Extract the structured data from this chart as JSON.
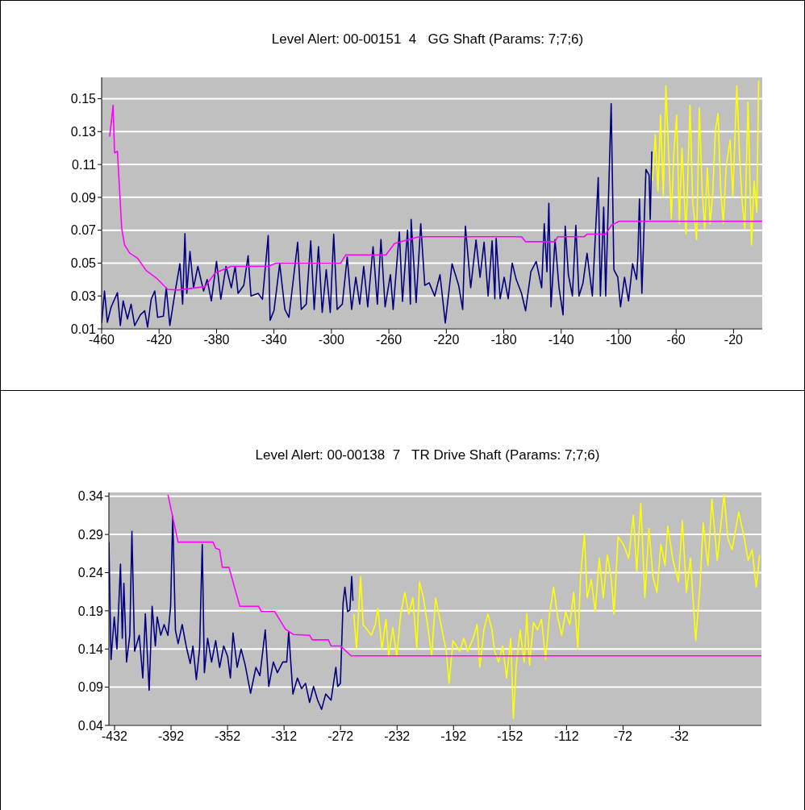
{
  "chart_data": [
    {
      "type": "line",
      "title": "Level Alert: 00-00151  4   GG Shaft (Params: 7;7;6)",
      "xlim": [
        -460,
        0
      ],
      "xticks": [
        -460,
        -420,
        -380,
        -340,
        -300,
        -260,
        -220,
        -180,
        -140,
        -100,
        -60,
        -20
      ],
      "ylim": [
        0.01,
        0.163
      ],
      "yticks": [
        0.01,
        0.03,
        0.05,
        0.07,
        0.09,
        0.11,
        0.13,
        0.15
      ],
      "grid": "y",
      "series": [
        {
          "color": "#000080",
          "x": [
            -460,
            -458,
            -456,
            -453.5,
            -449,
            -447,
            -445,
            -442,
            -439.5,
            -437,
            -433,
            -430,
            -428,
            -425.5,
            -423,
            -421,
            -417,
            -415,
            -412.5,
            -409,
            -405.5,
            -403.6,
            -402,
            -400.7,
            -398.5,
            -396,
            -393,
            -389,
            -386.5,
            -383.6,
            -380,
            -377,
            -373.4,
            -369.7,
            -367,
            -365,
            -361,
            -358,
            -356,
            -351,
            -348,
            -344,
            -342.7,
            -340,
            -336,
            -332.4,
            -329.6,
            -323.5,
            -321,
            -317.5,
            -314.4,
            -312,
            -309,
            -306.4,
            -303.6,
            -300.8,
            -298.4,
            -296,
            -292.4,
            -289,
            -285.9,
            -283,
            -280.3,
            -277.5,
            -274.7,
            -271,
            -268,
            -265.5,
            -262.6,
            -258.9,
            -257,
            -252.7,
            -250.5,
            -247,
            -245,
            -244.5,
            -241,
            -237.8,
            -235,
            -231.9,
            -228.1,
            -224.4,
            -220.7,
            -216,
            -211.4,
            -208.6,
            -206.7,
            -203,
            -199.3,
            -196.5,
            -193.7,
            -190.9,
            -188.1,
            -186.2,
            -185.3,
            -182.5,
            -179.7,
            -176.9,
            -174.1,
            -171.3,
            -167.6,
            -164.8,
            -161.1,
            -157.4,
            -153.6,
            -151.8,
            -149.9,
            -148.6,
            -147.1,
            -144.3,
            -141.5,
            -138.7,
            -137.2,
            -135,
            -132.2,
            -129.8,
            -127.6,
            -124.8,
            -122,
            -118.3,
            -114.2,
            -112.7,
            -110.4,
            -109,
            -105.2,
            -103.3,
            -100.6,
            -98.7,
            -95.9,
            -93.1,
            -90.3,
            -87.5,
            -86.6,
            -85.5,
            -83.8,
            -81,
            -78.8,
            -78,
            -76.9
          ],
          "values": [
            0.0136,
            0.033,
            0.014,
            0.023,
            0.032,
            0.012,
            0.027,
            0.016,
            0.025,
            0.012,
            0.0185,
            0.021,
            0.011,
            0.028,
            0.033,
            0.017,
            0.0177,
            0.035,
            0.012,
            0.0316,
            0.0496,
            0.025,
            0.068,
            0.0316,
            0.057,
            0.035,
            0.048,
            0.033,
            0.04,
            0.027,
            0.051,
            0.028,
            0.048,
            0.035,
            0.048,
            0.0316,
            0.0365,
            0.0545,
            0.03,
            0.0316,
            0.028,
            0.0668,
            0.0152,
            0.021,
            0.0496,
            0.0218,
            0.017,
            0.0627,
            0.0218,
            0.025,
            0.0635,
            0.0218,
            0.06,
            0.02,
            0.046,
            0.02,
            0.0676,
            0.0218,
            0.025,
            0.0537,
            0.0218,
            0.0414,
            0.025,
            0.048,
            0.0234,
            0.06,
            0.025,
            0.0643,
            0.0234,
            0.043,
            0.0218,
            0.069,
            0.0267,
            0.07,
            0.025,
            0.0766,
            0.026,
            0.074,
            0.0365,
            0.038,
            0.03,
            0.043,
            0.0136,
            0.0496,
            0.0365,
            0.0218,
            0.0725,
            0.035,
            0.064,
            0.0414,
            0.0627,
            0.03,
            0.0635,
            0.0283,
            0.065,
            0.0283,
            0.0414,
            0.0283,
            0.05,
            0.04,
            0.0316,
            0.021,
            0.0447,
            0.051,
            0.035,
            0.074,
            0.0447,
            0.0864,
            0.0234,
            0.0643,
            0.035,
            0.0185,
            0.0725,
            0.043,
            0.03,
            0.073,
            0.03,
            0.038,
            0.056,
            0.03,
            0.102,
            0.03,
            0.084,
            0.03,
            0.147,
            0.046,
            0.0414,
            0.0234,
            0.0414,
            0.027,
            0.0496,
            0.04,
            0.0545,
            0.089,
            0.0316,
            0.107,
            0.1036,
            0.0766,
            0.118
          ]
        },
        {
          "color": "#ffff00",
          "x": [
            -76.4,
            -74.5,
            -72.6,
            -70.8,
            -68.9,
            -67.1,
            -65.2,
            -63.3,
            -61.5,
            -59.6,
            -57.7,
            -55.9,
            -53.1,
            -50.3,
            -48.4,
            -45.7,
            -43.8,
            -42,
            -40.1,
            -38.2,
            -36.3,
            -34.5,
            -32.6,
            -30.8,
            -28.9,
            -27.1,
            -25.2,
            -22.4,
            -20.5,
            -17.7,
            -15.9,
            -14,
            -12.1,
            -9.9,
            -7.5,
            -5.7,
            -3.8,
            -2.5
          ],
          "values": [
            0.1,
            0.128,
            0.0938,
            0.14,
            0.0905,
            0.158,
            0.117,
            0.077,
            0.118,
            0.14,
            0.074,
            0.12,
            0.0676,
            0.146,
            0.087,
            0.0643,
            0.1445,
            0.097,
            0.071,
            0.108,
            0.074,
            0.092,
            0.131,
            0.141,
            0.0938,
            0.074,
            0.108,
            0.125,
            0.0905,
            0.158,
            0.117,
            0.087,
            0.071,
            0.148,
            0.061,
            0.1,
            0.081,
            0.161
          ]
        },
        {
          "color": "#ff00ff",
          "x": [
            -454.4,
            -452,
            -451,
            -449,
            -446,
            -444,
            -440.4,
            -435,
            -429,
            -422,
            -414,
            -407,
            -388,
            -381,
            -370,
            -344,
            -338.5,
            -293.5,
            -290,
            -262,
            -256,
            -239,
            -167.6,
            -164.8,
            -144.3,
            -142.5,
            -124,
            -122,
            -109,
            -105,
            -99.6,
            0
          ],
          "values": [
            0.127,
            0.146,
            0.117,
            0.118,
            0.071,
            0.061,
            0.056,
            0.053,
            0.0455,
            0.041,
            0.034,
            0.0336,
            0.0357,
            0.044,
            0.048,
            0.048,
            0.05,
            0.05,
            0.055,
            0.055,
            0.062,
            0.066,
            0.066,
            0.063,
            0.063,
            0.066,
            0.066,
            0.0676,
            0.0676,
            0.073,
            0.0755,
            0.0755
          ]
        }
      ]
    },
    {
      "type": "line",
      "title": "Level Alert: 00-00138  7   TR Drive Shaft (Params: 7;7;6)",
      "xlim": [
        -436,
        26
      ],
      "xticks": [
        -432,
        -392,
        -352,
        -312,
        -272,
        -232,
        -192,
        -152,
        -112,
        -72,
        -32
      ],
      "ylim": [
        0.04,
        0.345
      ],
      "yticks": [
        0.04,
        0.09,
        0.14,
        0.19,
        0.24,
        0.29,
        0.34
      ],
      "grid": "y",
      "series": [
        {
          "color": "#000080",
          "x": [
            -436,
            -434.5,
            -432.2,
            -430.3,
            -427.8,
            -426.5,
            -425.4,
            -423.5,
            -421.2,
            -419.7,
            -417.8,
            -414.5,
            -412,
            -410.2,
            -407.5,
            -405.4,
            -403.1,
            -401.8,
            -399.3,
            -396.9,
            -394.2,
            -392.3,
            -390.8,
            -388.9,
            -387,
            -384.1,
            -381.3,
            -378.4,
            -376.5,
            -374.1,
            -371.8,
            -369.9,
            -368.4,
            -366.1,
            -363.3,
            -360.4,
            -357.6,
            -354.7,
            -351.9,
            -350,
            -348.1,
            -345.2,
            -342.4,
            -339.5,
            -335.7,
            -331.9,
            -329.1,
            -325.3,
            -322.8,
            -319.6,
            -316.7,
            -312.9,
            -310.1,
            -308.7,
            -305.7,
            -302.5,
            -299.6,
            -296.8,
            -293.9,
            -291.1,
            -288.2,
            -285.4,
            -282.5,
            -278.7,
            -275.3,
            -274,
            -272.1,
            -270.2,
            -268.9,
            -267,
            -265.4,
            -264.1,
            -263.2
          ],
          "values": [
            0.28,
            0.126,
            0.182,
            0.14,
            0.251,
            0.154,
            0.226,
            0.123,
            0.158,
            0.294,
            0.137,
            0.158,
            0.102,
            0.186,
            0.086,
            0.196,
            0.144,
            0.182,
            0.158,
            0.172,
            0.158,
            0.196,
            0.314,
            0.165,
            0.147,
            0.172,
            0.144,
            0.121,
            0.144,
            0.1,
            0.14,
            0.277,
            0.109,
            0.154,
            0.123,
            0.151,
            0.116,
            0.144,
            0.13,
            0.102,
            0.161,
            0.116,
            0.14,
            0.119,
            0.082,
            0.116,
            0.105,
            0.165,
            0.091,
            0.123,
            0.109,
            0.123,
            0.123,
            0.163,
            0.081,
            0.102,
            0.088,
            0.095,
            0.07,
            0.091,
            0.073,
            0.061,
            0.081,
            0.073,
            0.116,
            0.091,
            0.095,
            0.2,
            0.221,
            0.189,
            0.191,
            0.235,
            0.203
          ]
        },
        {
          "color": "#ffff00",
          "x": [
            -262.6,
            -260.7,
            -257.8,
            -256,
            -253.1,
            -250.2,
            -247.4,
            -245.5,
            -242.7,
            -239.8,
            -237.9,
            -235,
            -232.2,
            -229.4,
            -226.5,
            -223.7,
            -220.8,
            -218,
            -216.1,
            -213.3,
            -210.4,
            -207.5,
            -204.7,
            -200.9,
            -197.1,
            -195.2,
            -192.4,
            -187.6,
            -184.8,
            -181.9,
            -178.1,
            -175.3,
            -173.4,
            -170.5,
            -167.7,
            -164.8,
            -162.9,
            -160.1,
            -157.2,
            -154.4,
            -151.5,
            -149.6,
            -147.7,
            -144.9,
            -142,
            -140.1,
            -138.2,
            -135.4,
            -132.5,
            -129.7,
            -126.8,
            -124,
            -121.1,
            -118.3,
            -115.4,
            -112.6,
            -109.7,
            -106.9,
            -104,
            -102.1,
            -99.3,
            -97.4,
            -94.5,
            -91.7,
            -88.8,
            -86,
            -83.1,
            -80.3,
            -78.4,
            -75.5,
            -71.8,
            -68,
            -64.7,
            -62.3,
            -59.4,
            -56.5,
            -53.7,
            -50.8,
            -48,
            -45.2,
            -42.3,
            -40.4,
            -36.6,
            -32.8,
            -30,
            -27.1,
            -24.3,
            -20.5,
            -17.6,
            -15.2,
            -11.9,
            -9.1,
            -5.3,
            -0.5,
            2.3,
            5.2,
            9.9,
            13.7,
            16.6,
            19.4,
            22.3,
            24.7
          ],
          "values": [
            0.186,
            0.14,
            0.235,
            0.172,
            0.165,
            0.158,
            0.172,
            0.193,
            0.14,
            0.179,
            0.13,
            0.168,
            0.13,
            0.186,
            0.214,
            0.186,
            0.207,
            0.14,
            0.228,
            0.207,
            0.172,
            0.13,
            0.207,
            0.172,
            0.137,
            0.095,
            0.151,
            0.137,
            0.154,
            0.137,
            0.154,
            0.172,
            0.116,
            0.165,
            0.186,
            0.165,
            0.137,
            0.123,
            0.144,
            0.102,
            0.154,
            0.049,
            0.116,
            0.165,
            0.123,
            0.186,
            0.119,
            0.175,
            0.165,
            0.179,
            0.126,
            0.186,
            0.221,
            0.182,
            0.158,
            0.189,
            0.172,
            0.214,
            0.14,
            0.235,
            0.291,
            0.207,
            0.231,
            0.189,
            0.259,
            0.207,
            0.263,
            0.231,
            0.186,
            0.287,
            0.277,
            0.259,
            0.315,
            0.242,
            0.331,
            0.207,
            0.298,
            0.235,
            0.214,
            0.277,
            0.249,
            0.301,
            0.256,
            0.228,
            0.308,
            0.214,
            0.259,
            0.151,
            0.221,
            0.305,
            0.249,
            0.336,
            0.256,
            0.342,
            0.284,
            0.27,
            0.319,
            0.287,
            0.256,
            0.27,
            0.221,
            0.263
          ]
        },
        {
          "color": "#ff00ff",
          "x": [
            -394.2,
            -387,
            -362.3,
            -360.4,
            -357.6,
            -355.7,
            -351,
            -343.3,
            -330,
            -328.1,
            -318.6,
            -311,
            -305.3,
            -293.9,
            -292,
            -280.6,
            -278.7,
            -272.1,
            -264.5,
            -263.5,
            26
          ],
          "values": [
            0.342,
            0.28,
            0.28,
            0.272,
            0.27,
            0.247,
            0.247,
            0.196,
            0.196,
            0.189,
            0.189,
            0.166,
            0.159,
            0.158,
            0.152,
            0.152,
            0.144,
            0.144,
            0.131,
            0.131,
            0.131
          ]
        }
      ]
    }
  ]
}
